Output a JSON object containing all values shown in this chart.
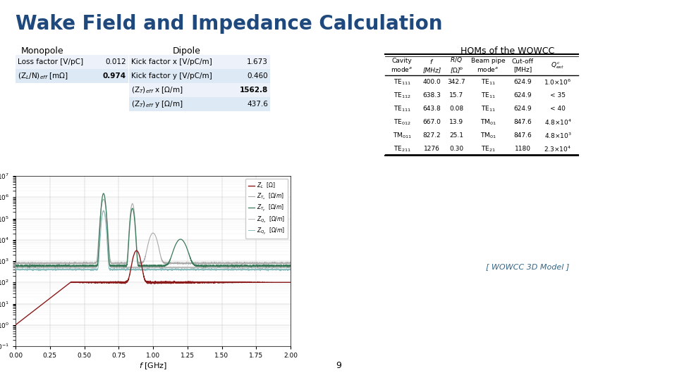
{
  "title": "Wake Field and Impedance Calculation",
  "title_color": "#1F497D",
  "background_color": "#FFFFFF",
  "monopole_label": "Monopole",
  "dipole_label": "Dipole",
  "homs_label": "HOMs of the WOWCC",
  "monopole_rows": [
    [
      "Loss factor [V/pC]",
      "0.012"
    ],
    [
      "(Z_L/N)_eff [mΩ]",
      "0.974"
    ]
  ],
  "dipole_rows": [
    [
      "Kick factor x [V/pC/m]",
      "1.673",
      false
    ],
    [
      "Kick factor y [V/pC/m]",
      "0.460",
      false
    ],
    [
      "(Z_T)_eff x [Ω/m]",
      "1562.8",
      true
    ],
    [
      "(Z_T)_eff y [Ω/m]",
      "437.6",
      false
    ]
  ],
  "homs_rows": [
    [
      "TE111",
      "400.0",
      "342.7",
      "TE11",
      "624.9",
      "1.0 × 10^6"
    ],
    [
      "TE112",
      "638.3",
      "15.7",
      "TE11",
      "624.9",
      "< 35"
    ],
    [
      "TE111",
      "643.8",
      "0.08",
      "TE11",
      "624.9",
      "< 40"
    ],
    [
      "TE012",
      "667.0",
      "13.9",
      "TM01",
      "847.6",
      "4.8 × 10^4"
    ],
    [
      "TM011",
      "827.2",
      "25.1",
      "TM01",
      "847.6",
      "4.8 × 10^3"
    ],
    [
      "TE211",
      "1276",
      "0.30",
      "TE21",
      "1180",
      "2.3 × 10^4"
    ]
  ],
  "page_number": "9",
  "table_bg1": "#EDF2FA",
  "table_bg2": "#DDEAF5"
}
